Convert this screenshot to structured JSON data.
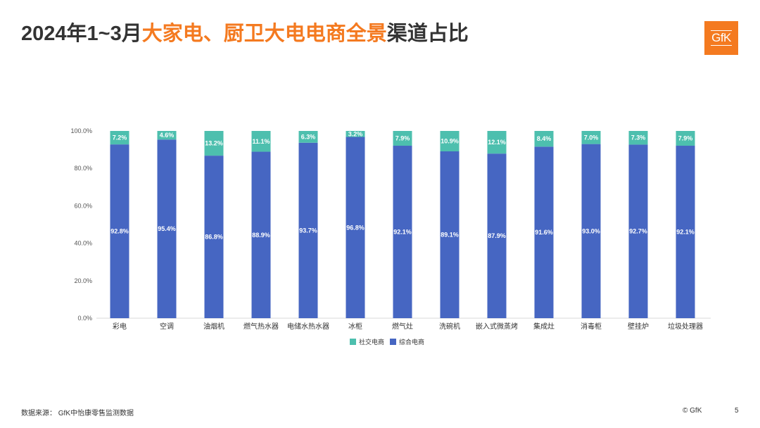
{
  "title": {
    "part1": "2024年1~3月",
    "part2": "大家电、厨卫大电电商全景",
    "part3": "渠道占比"
  },
  "logo": {
    "text": "GfK"
  },
  "colors": {
    "accent": "#f47a20",
    "series_social": "#4dbfae",
    "series_general": "#4666c2",
    "text": "#333333"
  },
  "chart_data": {
    "type": "bar",
    "stacked": true,
    "categories": [
      "彩电",
      "空调",
      "油烟机",
      "燃气热水器",
      "电储水热水器",
      "冰柜",
      "燃气灶",
      "洗碗机",
      "嵌入式微蒸烤",
      "集成灶",
      "消毒柜",
      "壁挂炉",
      "垃圾处理器"
    ],
    "series": [
      {
        "name": "综合电商",
        "values": [
          92.8,
          95.4,
          86.8,
          88.9,
          93.7,
          96.8,
          92.1,
          89.1,
          87.9,
          91.6,
          93.0,
          92.7,
          92.1
        ]
      },
      {
        "name": "社交电商",
        "values": [
          7.2,
          4.6,
          13.2,
          11.1,
          6.3,
          3.2,
          7.9,
          10.9,
          12.1,
          8.4,
          7.0,
          7.3,
          7.9
        ]
      }
    ],
    "ylim": [
      0,
      100
    ],
    "yticks": [
      "0.0%",
      "20.0%",
      "40.0%",
      "60.0%",
      "80.0%",
      "100.0%"
    ],
    "legend": [
      "社交电商",
      "综合电商"
    ],
    "legend_position": "bottom"
  },
  "footer": {
    "source": "数据来源：  GfK中怡康零售监测数据",
    "copyright": "© GfK",
    "page": "5"
  }
}
